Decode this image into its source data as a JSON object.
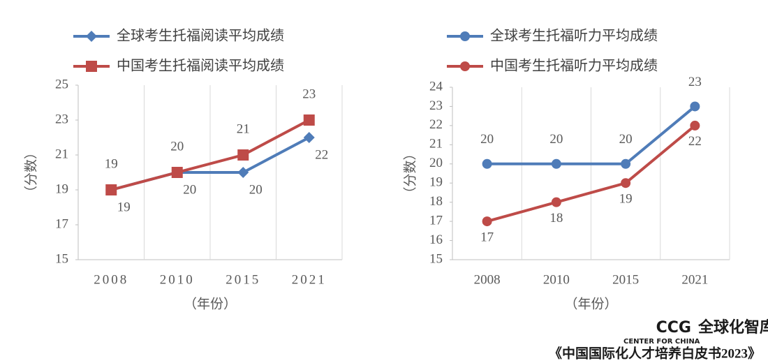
{
  "chart_data": [
    {
      "type": "line",
      "y_label": "（分数）",
      "x_label": "（年份）",
      "categories": [
        "2008",
        "2010",
        "2015",
        "2021"
      ],
      "series": [
        {
          "name": "全球考生托福阅读平均成绩",
          "color": "#4f7cb8",
          "marker": "diamond",
          "values": [
            19,
            20,
            20,
            22
          ]
        },
        {
          "name": "中国考生托福阅读平均成绩",
          "color": "#be4b48",
          "marker": "square",
          "values": [
            19,
            20,
            21,
            23
          ]
        }
      ],
      "ylim": [
        15,
        25
      ],
      "yticks": [
        15,
        17,
        19,
        21,
        23,
        25
      ],
      "grid": true
    },
    {
      "type": "line",
      "y_label": "（分数）",
      "x_label": "（年份）",
      "categories": [
        "2008",
        "2010",
        "2015",
        "2021"
      ],
      "series": [
        {
          "name": "全球考生托福听力平均成绩",
          "color": "#4f7cb8",
          "marker": "circle",
          "values": [
            20,
            20,
            20,
            23
          ]
        },
        {
          "name": "中国考生托福听力平均成绩",
          "color": "#be4b48",
          "marker": "circle",
          "values": [
            17,
            18,
            19,
            22
          ]
        }
      ],
      "ylim": [
        15,
        24
      ],
      "yticks": [
        15,
        16,
        17,
        18,
        19,
        20,
        21,
        22,
        23,
        24
      ],
      "grid": true
    }
  ],
  "footer": {
    "brand": "CCG",
    "brand_cn": "全球化智库",
    "brand_en": "CENTER FOR CHINA",
    "source": "《中国国际化人才培养白皮书2023》"
  }
}
